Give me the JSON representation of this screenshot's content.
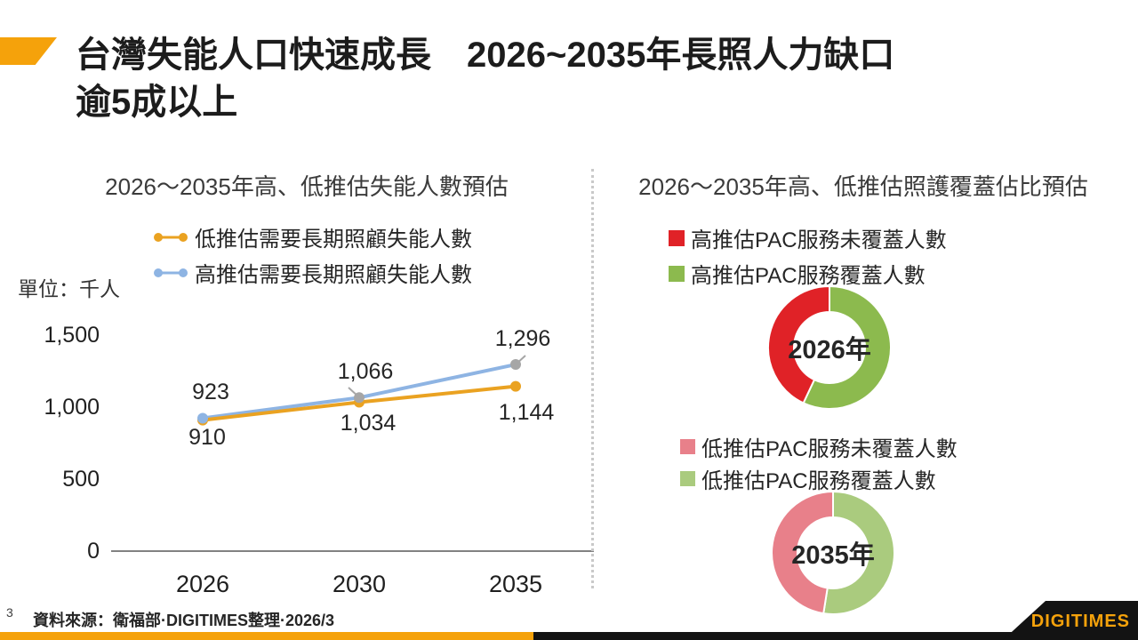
{
  "slide": {
    "title_line1": "台灣失能人口快速成長　2026~2035年長照人力缺口",
    "title_line2": "逾5成以上",
    "accent_color": "#F5A20B"
  },
  "chart_data": [
    {
      "type": "line",
      "title": "2026～2035年高、低推估失能人數預估",
      "unit_label": "單位：千人",
      "categories": [
        "2026",
        "2030",
        "2035"
      ],
      "series": [
        {
          "name": "低推估需要長期照顧失能人數",
          "color": "#EAA221",
          "values": [
            910,
            1034,
            1144
          ]
        },
        {
          "name": "高推估需要長期照顧失能人數",
          "color": "#8EB4E3",
          "values": [
            923,
            1066,
            1296
          ]
        }
      ],
      "y_ticks": [
        0,
        500,
        1000,
        1500
      ],
      "ylim": [
        0,
        1500
      ],
      "grid": false,
      "legend_position": "top",
      "marker_gray": "#A6A6A6"
    },
    {
      "type": "donut",
      "label": "2026年",
      "slices": [
        {
          "name": "高推估PAC服務覆蓋人數",
          "color": "#8CBA4E",
          "pct": 57
        },
        {
          "name": "高推估PAC服務未覆蓋人數",
          "color": "#E02227",
          "pct": 43
        }
      ]
    },
    {
      "type": "donut",
      "label": "2035年",
      "slices": [
        {
          "name": "低推估PAC服務覆蓋人數",
          "color": "#AACB7E",
          "pct": 52.5
        },
        {
          "name": "低推估PAC服務未覆蓋人數",
          "color": "#E8808A",
          "pct": 47.5
        }
      ]
    }
  ],
  "right_chart": {
    "title": "2026～2035年高、低推估照護覆蓋佔比預估"
  },
  "footer": {
    "page_number": "3",
    "source": "資料來源：衛福部·DIGITIMES整理·2026/3"
  },
  "branding": {
    "logo_text": "DIGITIMES",
    "logo_color": "#F5A20B"
  }
}
